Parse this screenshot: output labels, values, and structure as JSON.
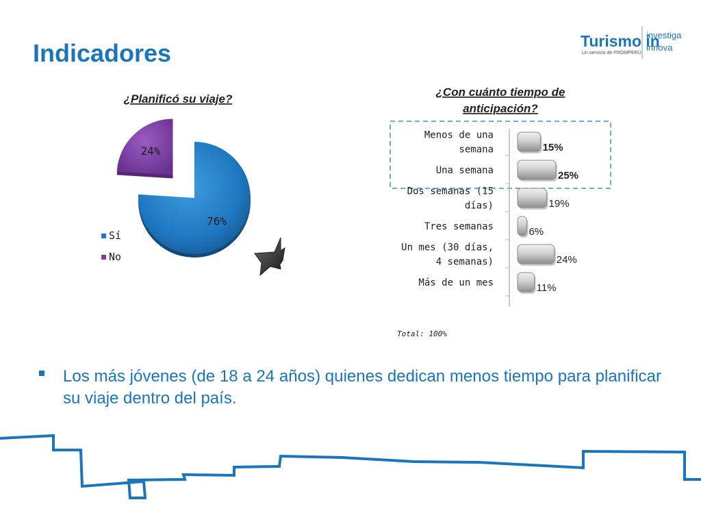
{
  "slide": {
    "title": "Indicadores",
    "total_note": "Total: 100%",
    "bullet_text_line1": "Los más jóvenes (de 18 a 24 años) quienes dedican menos tiempo para planificar",
    "bullet_text_line2": "su viaje dentro del país."
  },
  "logo": {
    "main": "Turismo in",
    "sub": "Un servicio de PROMPERÚ",
    "side1": "investiga",
    "side2": "innova"
  },
  "colors": {
    "title": "#1b75bb",
    "pie_si": "#1f78c1",
    "pie_no": "#7b3fa3",
    "bar": "#c9c9c9",
    "highlight_box": "#3b8fd1",
    "bottom_line": "#1b75bb"
  },
  "chart_data": [
    {
      "type": "pie",
      "title": "¿Planificó su viaje?",
      "categories": [
        "Sí",
        "No"
      ],
      "values": [
        76,
        24
      ],
      "labels": [
        "76%",
        "24%"
      ],
      "legend": "right",
      "exploded": "No"
    },
    {
      "type": "bar",
      "orientation": "horizontal",
      "title_line1": "¿Con cuánto tiempo de",
      "title_line2": "anticipación?",
      "categories": [
        [
          "Menos de una",
          "semana"
        ],
        [
          "Una semana"
        ],
        [
          "Dos semanas (15",
          "días)"
        ],
        [
          "Tres semanas"
        ],
        [
          "Un mes (30 días,",
          "4 semanas)"
        ],
        [
          "Más de un mes"
        ]
      ],
      "values": [
        15,
        25,
        19,
        6,
        24,
        11
      ],
      "labels": [
        "15%",
        "25%",
        "19%",
        "6%",
        "24%",
        "11%"
      ],
      "bold_labels": [
        true,
        true,
        false,
        false,
        false,
        false
      ],
      "highlighted_categories": [
        "Menos de una semana",
        "Una semana"
      ],
      "grid": false
    }
  ]
}
